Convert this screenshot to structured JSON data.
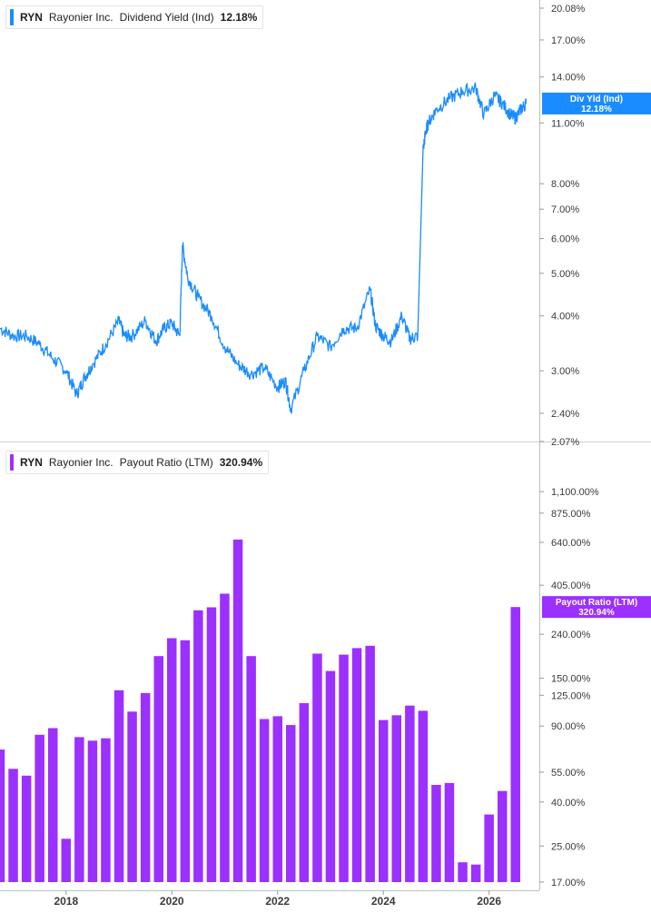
{
  "colors": {
    "yield": "#1a8cff",
    "payout": "#9b30ff"
  },
  "legends": {
    "top": {
      "symbol": "RYN",
      "company": "Rayonier Inc.",
      "metric": "Dividend Yield (Ind)",
      "value": "12.18%"
    },
    "bottom": {
      "symbol": "RYN",
      "company": "Rayonier Inc.",
      "metric": "Payout Ratio (LTM)",
      "value": "320.94%"
    }
  },
  "chart_data": [
    {
      "type": "line",
      "name": "Dividend Yield (Ind)",
      "scale": "log",
      "y_tick_labels": [
        "20.08%",
        "17.00%",
        "14.00%",
        "11.00%",
        "8.00%",
        "7.00%",
        "6.00%",
        "5.00%",
        "4.00%",
        "3.00%",
        "2.40%",
        "2.07%"
      ],
      "y_tick_values": [
        20.08,
        17.0,
        14.0,
        11.0,
        8.0,
        7.0,
        6.0,
        5.0,
        4.0,
        3.0,
        2.4,
        2.07
      ],
      "ylim": [
        2.07,
        20.08
      ],
      "xlim": [
        2016.75,
        2026.95
      ],
      "current": {
        "label_line1": "Div Yld (Ind)",
        "label_line2": "12.18%",
        "value": 12.18
      },
      "x": [
        2016.75,
        2017.0,
        2017.25,
        2017.5,
        2017.75,
        2018.0,
        2018.2,
        2018.35,
        2018.5,
        2018.75,
        2019.0,
        2019.1,
        2019.25,
        2019.5,
        2019.7,
        2019.85,
        2020.0,
        2020.15,
        2020.2,
        2020.3,
        2020.5,
        2020.75,
        2021.0,
        2021.25,
        2021.5,
        2021.75,
        2022.0,
        2022.15,
        2022.25,
        2022.5,
        2022.75,
        2023.0,
        2023.25,
        2023.5,
        2023.75,
        2023.85,
        2024.0,
        2024.15,
        2024.35,
        2024.5,
        2024.65,
        2024.75,
        2024.8,
        2024.85,
        2025.0,
        2025.25,
        2025.5,
        2025.75,
        2025.9,
        2026.1,
        2026.25,
        2026.4,
        2026.5,
        2026.6,
        2026.7
      ],
      "y": [
        3.75,
        3.6,
        3.6,
        3.45,
        3.2,
        3.0,
        2.65,
        2.9,
        3.1,
        3.45,
        3.9,
        3.6,
        3.6,
        3.9,
        3.5,
        3.75,
        3.85,
        3.6,
        5.8,
        4.9,
        4.4,
        4.0,
        3.4,
        3.1,
        2.95,
        3.05,
        2.75,
        2.85,
        2.45,
        3.0,
        3.6,
        3.4,
        3.75,
        3.75,
        4.6,
        3.8,
        3.6,
        3.5,
        4.0,
        3.55,
        3.6,
        9.5,
        10.5,
        11.0,
        11.8,
        12.5,
        13.0,
        13.2,
        11.5,
        12.7,
        12.2,
        11.5,
        11.3,
        11.8,
        12.18
      ]
    },
    {
      "type": "bar",
      "name": "Payout Ratio (LTM)",
      "scale": "log",
      "y_tick_labels": [
        "1,100.00%",
        "875.00%",
        "640.00%",
        "405.00%",
        "240.00%",
        "150.00%",
        "125.00%",
        "90.00%",
        "55.00%",
        "40.00%",
        "25.00%",
        "17.00%"
      ],
      "y_tick_values": [
        1100,
        875,
        640,
        405,
        240,
        150,
        125,
        90,
        55,
        40,
        25,
        17
      ],
      "ylim": [
        17,
        1300
      ],
      "xlim": [
        2016.75,
        2026.95
      ],
      "current": {
        "label_line1": "Payout Ratio (LTM)",
        "label_line2": "320.94%",
        "value": 320.94
      },
      "x": [
        2016.75,
        2017.0,
        2017.25,
        2017.5,
        2017.75,
        2018.0,
        2018.25,
        2018.5,
        2018.75,
        2019.0,
        2019.25,
        2019.5,
        2019.75,
        2020.0,
        2020.25,
        2020.5,
        2020.75,
        2021.0,
        2021.25,
        2021.5,
        2021.75,
        2022.0,
        2022.25,
        2022.5,
        2022.75,
        2023.0,
        2023.25,
        2023.5,
        2023.75,
        2024.0,
        2024.25,
        2024.5,
        2024.75,
        2025.0,
        2025.25,
        2025.5,
        2025.75,
        2026.0,
        2026.25,
        2026.5
      ],
      "values": [
        70,
        57,
        53,
        82,
        88,
        27,
        80,
        77,
        79,
        132,
        105,
        128,
        190,
        230,
        225,
        310,
        320,
        370,
        660,
        190,
        97,
        100,
        91,
        115,
        195,
        162,
        193,
        207,
        212,
        96,
        101,
        112,
        106,
        48,
        49,
        21,
        20.5,
        35,
        45,
        320.94
      ]
    }
  ],
  "x_axis": {
    "tick_labels": [
      "2018",
      "2020",
      "2022",
      "2024",
      "2026"
    ],
    "tick_values": [
      2018,
      2020,
      2022,
      2024,
      2026
    ]
  }
}
